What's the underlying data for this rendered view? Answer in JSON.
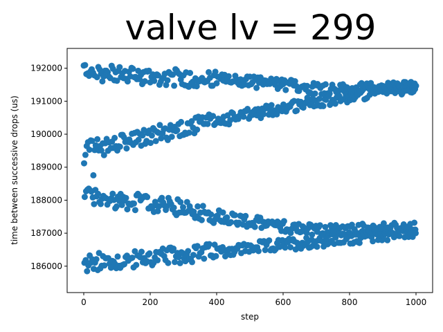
{
  "chart_data": {
    "type": "scatter",
    "title": "valve lv = 299",
    "xlabel": "step",
    "ylabel": "time between successive drops (us)",
    "xlim": [
      -50,
      1050
    ],
    "ylim": [
      185200,
      192600
    ],
    "xticks": [
      0,
      200,
      400,
      600,
      800,
      1000
    ],
    "yticks": [
      186000,
      187000,
      188000,
      189000,
      190000,
      191000,
      192000
    ],
    "color": "#1f77b4",
    "grid": false,
    "points_note": "approximately 1000 points sampled along four branches",
    "branches": [
      {
        "x": [
          0,
          15,
          30,
          60,
          120,
          200,
          300,
          400,
          500,
          600,
          700,
          800,
          900,
          1000
        ],
        "y": [
          192000,
          191950,
          191900,
          191850,
          191800,
          191750,
          191700,
          191650,
          191600,
          191500,
          191400,
          191350,
          191400,
          191450
        ]
      },
      {
        "x": [
          0,
          10,
          25,
          50,
          100,
          150,
          200,
          300,
          400,
          500,
          600,
          700,
          800,
          900,
          1000
        ],
        "y": [
          189000,
          189500,
          189700,
          189600,
          189700,
          189800,
          189950,
          190200,
          190400,
          190600,
          190800,
          191000,
          191150,
          191300,
          191450
        ]
      },
      {
        "x": [
          0,
          10,
          25,
          50,
          100,
          150,
          200,
          300,
          400,
          500,
          600,
          700,
          800,
          900,
          1000
        ],
        "y": [
          186000,
          186050,
          186100,
          186150,
          186150,
          186200,
          186250,
          186350,
          186450,
          186550,
          186650,
          186750,
          186850,
          186950,
          187050
        ]
      },
      {
        "x": [
          0,
          10,
          25,
          50,
          100,
          150,
          200,
          300,
          400,
          500,
          600,
          700,
          800,
          900,
          1000
        ],
        "y": [
          188300,
          188200,
          188150,
          188100,
          188000,
          187950,
          187900,
          187750,
          187550,
          187350,
          187200,
          187100,
          187100,
          187150,
          187150
        ]
      }
    ]
  }
}
